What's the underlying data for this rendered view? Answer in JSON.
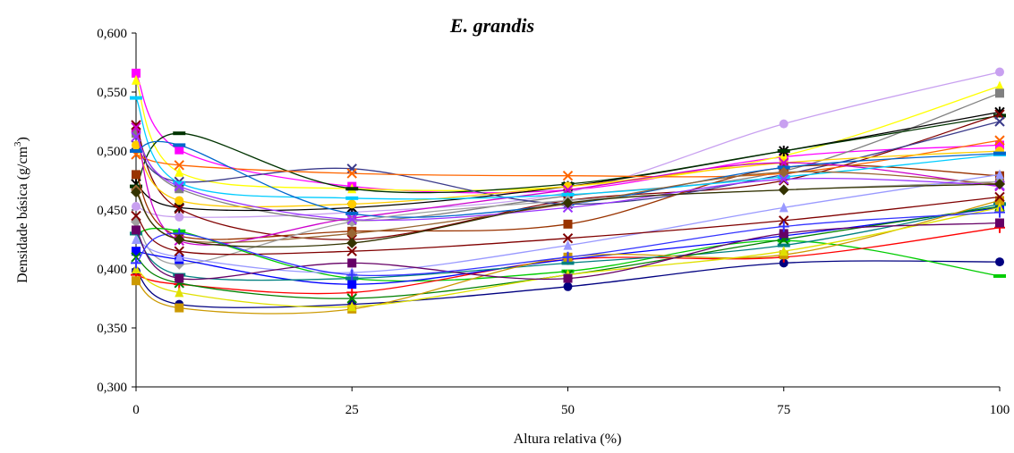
{
  "chart_data": {
    "type": "line",
    "title": "E. grandis",
    "xlabel": "Altura relativa (%)",
    "ylabel_main": "Densidade básica (g/cm",
    "ylabel_sup": "3",
    "ylabel_close": ")",
    "x": [
      0,
      5,
      25,
      50,
      75,
      100
    ],
    "x_ticks": [
      0,
      25,
      50,
      75,
      100
    ],
    "x_tick_labels": [
      "0",
      "25",
      "50",
      "75",
      "100"
    ],
    "xlim": [
      0,
      100
    ],
    "ylim": [
      0.3,
      0.6
    ],
    "y_ticks": [
      0.3,
      0.35,
      0.4,
      0.45,
      0.5,
      0.55,
      0.6
    ],
    "y_tick_labels": [
      "0,300",
      "0,350",
      "0,400",
      "0,450",
      "0,500",
      "0,550",
      "0,600"
    ],
    "grid": false,
    "legend": "none",
    "series": [
      {
        "color": "#ff00ff",
        "marker": "square",
        "values": [
          0.566,
          0.501,
          0.47,
          0.467,
          0.495,
          0.505
        ]
      },
      {
        "color": "#c8a0f0",
        "marker": "circle",
        "values": [
          0.453,
          0.444,
          0.448,
          0.465,
          0.523,
          0.567
        ]
      },
      {
        "color": "#ffff00",
        "marker": "triangle",
        "values": [
          0.56,
          0.482,
          0.468,
          0.47,
          0.496,
          0.555
        ]
      },
      {
        "color": "#808080",
        "marker": "square",
        "values": [
          0.515,
          0.468,
          0.441,
          0.462,
          0.483,
          0.549
        ]
      },
      {
        "color": "#000000",
        "marker": "star",
        "values": [
          0.472,
          0.452,
          0.452,
          0.47,
          0.5,
          0.533
        ]
      },
      {
        "color": "#003300",
        "marker": "dash",
        "values": [
          0.47,
          0.515,
          0.468,
          0.472,
          0.5,
          0.53
        ]
      },
      {
        "color": "#800000",
        "marker": "x",
        "values": [
          0.522,
          0.451,
          0.425,
          0.458,
          0.475,
          0.531
        ]
      },
      {
        "color": "#3a3a8a",
        "marker": "x",
        "values": [
          0.505,
          0.474,
          0.485,
          0.455,
          0.48,
          0.525
        ]
      },
      {
        "color": "#ff6600",
        "marker": "x",
        "values": [
          0.497,
          0.488,
          0.481,
          0.479,
          0.481,
          0.509
        ]
      },
      {
        "color": "#ffcc00",
        "marker": "circle",
        "values": [
          0.505,
          0.458,
          0.455,
          0.47,
          0.49,
          0.5
        ]
      },
      {
        "color": "#993300",
        "marker": "square",
        "values": [
          0.48,
          0.428,
          0.432,
          0.438,
          0.486,
          0.479
        ]
      },
      {
        "color": "#cc00cc",
        "marker": "x",
        "values": [
          0.52,
          0.424,
          0.443,
          0.467,
          0.49,
          0.47
        ]
      },
      {
        "color": "#00ccff",
        "marker": "dash",
        "values": [
          0.545,
          0.473,
          0.46,
          0.463,
          0.478,
          0.497
        ]
      },
      {
        "color": "#0066cc",
        "marker": "dash",
        "values": [
          0.5,
          0.505,
          0.447,
          0.455,
          0.486,
          0.498
        ]
      },
      {
        "color": "#996633",
        "marker": "diamond",
        "values": [
          0.467,
          0.425,
          0.43,
          0.455,
          0.482,
          0.472
        ]
      },
      {
        "color": "#a0a0a0",
        "marker": "diamond",
        "values": [
          0.44,
          0.404,
          0.44,
          0.458,
          0.467,
          0.474
        ]
      },
      {
        "color": "#000080",
        "marker": "circle",
        "values": [
          0.398,
          0.37,
          0.37,
          0.385,
          0.405,
          0.406
        ]
      },
      {
        "color": "#00cc00",
        "marker": "dash",
        "values": [
          0.43,
          0.432,
          0.392,
          0.398,
          0.424,
          0.394
        ]
      },
      {
        "color": "#ff0000",
        "marker": "plus",
        "values": [
          0.395,
          0.387,
          0.38,
          0.408,
          0.41,
          0.435
        ]
      },
      {
        "color": "#0000ff",
        "marker": "square",
        "values": [
          0.415,
          0.408,
          0.387,
          0.408,
          0.428,
          0.452
        ]
      },
      {
        "color": "#9999ff",
        "marker": "triangle",
        "values": [
          0.425,
          0.41,
          0.397,
          0.42,
          0.452,
          0.48
        ]
      },
      {
        "color": "#008080",
        "marker": "dash",
        "values": [
          0.43,
          0.395,
          0.392,
          0.405,
          0.42,
          0.455
        ]
      },
      {
        "color": "#008000",
        "marker": "x",
        "values": [
          0.41,
          0.388,
          0.375,
          0.395,
          0.425,
          0.453
        ]
      },
      {
        "color": "#cc9900",
        "marker": "square",
        "values": [
          0.39,
          0.367,
          0.366,
          0.41,
          0.412,
          0.458
        ]
      },
      {
        "color": "#e0e000",
        "marker": "triangle",
        "values": [
          0.4,
          0.38,
          0.368,
          0.395,
          0.415,
          0.452
        ]
      },
      {
        "color": "#800000",
        "marker": "x",
        "values": [
          0.445,
          0.415,
          0.415,
          0.426,
          0.441,
          0.461
        ]
      },
      {
        "color": "#660066",
        "marker": "square",
        "values": [
          0.433,
          0.392,
          0.405,
          0.392,
          0.43,
          0.439
        ]
      },
      {
        "color": "#3333ff",
        "marker": "plus",
        "values": [
          0.405,
          0.43,
          0.395,
          0.41,
          0.436,
          0.448
        ]
      },
      {
        "color": "#9933ff",
        "marker": "x",
        "values": [
          0.512,
          0.47,
          0.442,
          0.452,
          0.476,
          0.471
        ]
      },
      {
        "color": "#333300",
        "marker": "diamond",
        "values": [
          0.465,
          0.425,
          0.422,
          0.456,
          0.467,
          0.472
        ]
      }
    ]
  }
}
